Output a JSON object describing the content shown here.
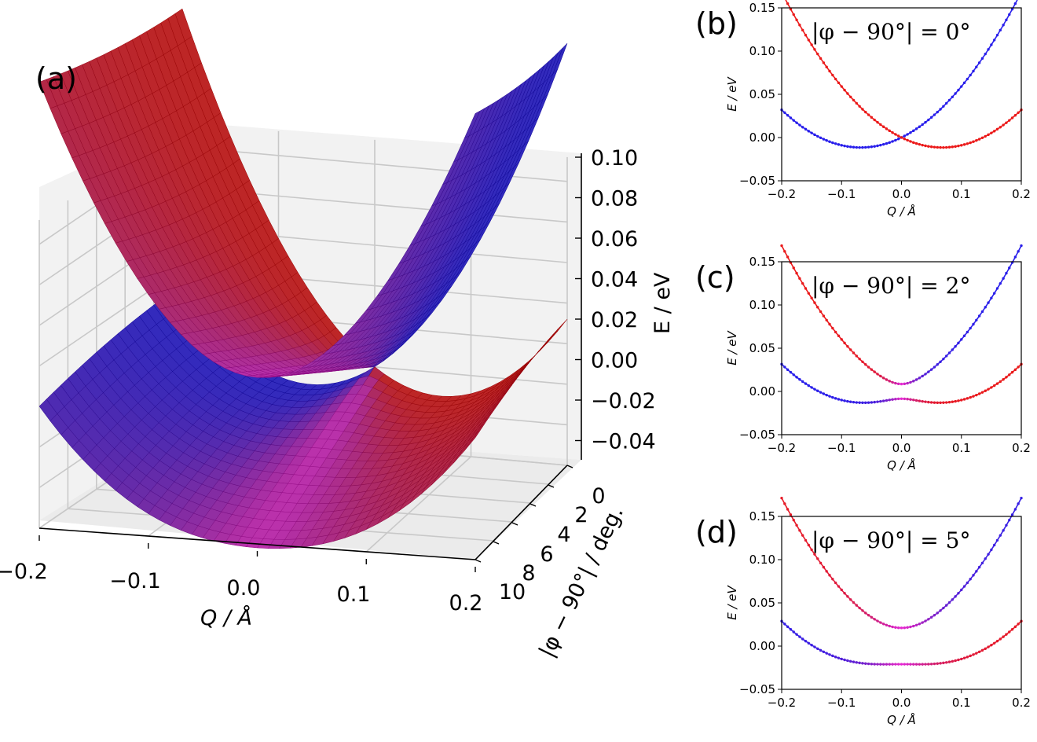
{
  "panels": {
    "a": "(a)",
    "b": "(b)",
    "c": "(c)",
    "d": "(d)"
  },
  "chart_data": [
    {
      "panel": "(a)",
      "type": "surface3d",
      "x_axis": {
        "label": "Q / Å",
        "ticks": [
          "−0.2",
          "−0.1",
          "0.0",
          "0.1",
          "0.2"
        ],
        "range": [
          -0.2,
          0.2
        ]
      },
      "y_axis": {
        "label": "|φ − 90°| / deg.",
        "ticks": [
          "0",
          "2",
          "4",
          "6",
          "8",
          "10"
        ],
        "range": [
          0,
          10
        ]
      },
      "z_axis": {
        "label": "E / eV",
        "ticks": [
          "0.10",
          "0.08",
          "0.06",
          "0.04",
          "0.02",
          "0.00",
          "−0.02",
          "−0.04"
        ],
        "range": [
          -0.04,
          0.1
        ]
      },
      "surfaces": [
        "upper",
        "lower"
      ],
      "colors": {
        "blue": "#3a32c8",
        "red": "#b8302e",
        "magenta": "#c23cc8"
      }
    },
    {
      "panel": "(b)",
      "type": "line",
      "annotation": "|φ − 90°| = 0°",
      "xlabel": "Q / Å",
      "ylabel": "E / eV",
      "xlim": [
        -0.2,
        0.2
      ],
      "ylim": [
        -0.05,
        0.15
      ],
      "xticks": [
        "−0.2",
        "−0.1",
        "0.0",
        "0.1",
        "0.2"
      ],
      "yticks": [
        "−0.05",
        "0.00",
        "0.05",
        "0.10",
        "0.15"
      ],
      "delta": 0.0,
      "model": {
        "k": 2.5,
        "q0": 0.068
      }
    },
    {
      "panel": "(c)",
      "type": "line",
      "annotation": "|φ − 90°| = 2°",
      "xlabel": "Q / Å",
      "ylabel": "E / eV",
      "xlim": [
        -0.2,
        0.2
      ],
      "ylim": [
        -0.05,
        0.15
      ],
      "xticks": [
        "−0.2",
        "−0.1",
        "0.0",
        "0.1",
        "0.2"
      ],
      "yticks": [
        "−0.05",
        "0.00",
        "0.05",
        "0.10",
        "0.15"
      ],
      "delta": 0.0085,
      "model": {
        "k": 2.5,
        "q0": 0.068
      }
    },
    {
      "panel": "(d)",
      "type": "line",
      "annotation": "|φ − 90°| = 5°",
      "xlabel": "Q / Å",
      "ylabel": "E / eV",
      "xlim": [
        -0.2,
        0.2
      ],
      "ylim": [
        -0.05,
        0.15
      ],
      "xticks": [
        "−0.2",
        "−0.1",
        "0.0",
        "0.1",
        "0.2"
      ],
      "yticks": [
        "−0.05",
        "0.00",
        "0.05",
        "0.10",
        "0.15"
      ],
      "delta": 0.021,
      "model": {
        "k": 2.5,
        "q0": 0.068
      }
    }
  ]
}
